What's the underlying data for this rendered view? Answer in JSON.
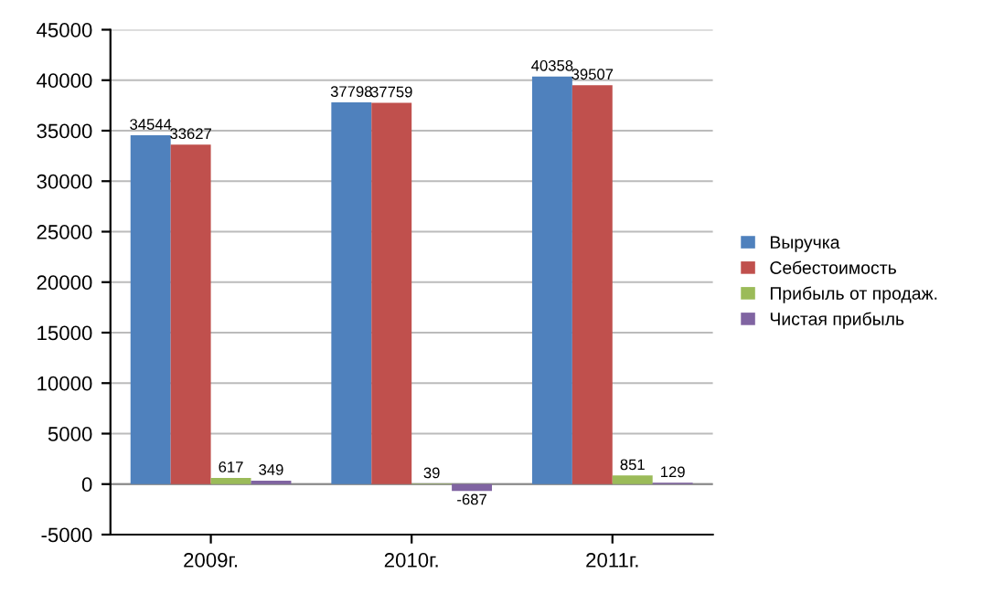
{
  "chart_data": {
    "type": "bar",
    "categories": [
      "2009г.",
      "2010г.",
      "2011г."
    ],
    "series": [
      {
        "name": "Выручка",
        "color": "#4f81bd",
        "values": [
          34544,
          37798,
          40358
        ]
      },
      {
        "name": "Себестоимость",
        "color": "#c0504d",
        "values": [
          33627,
          37759,
          39507
        ]
      },
      {
        "name": "Прибыль от продаж.",
        "color": "#9bbb59",
        "values": [
          617,
          39,
          851
        ]
      },
      {
        "name": "Чистая прибыль",
        "color": "#8064a2",
        "values": [
          349,
          -687,
          129
        ]
      }
    ],
    "ylim": [
      -5000,
      45000
    ],
    "yticks": [
      -5000,
      0,
      5000,
      10000,
      15000,
      20000,
      25000,
      30000,
      35000,
      40000,
      45000
    ],
    "grid": "y",
    "legend": "right",
    "data_labels": true
  }
}
